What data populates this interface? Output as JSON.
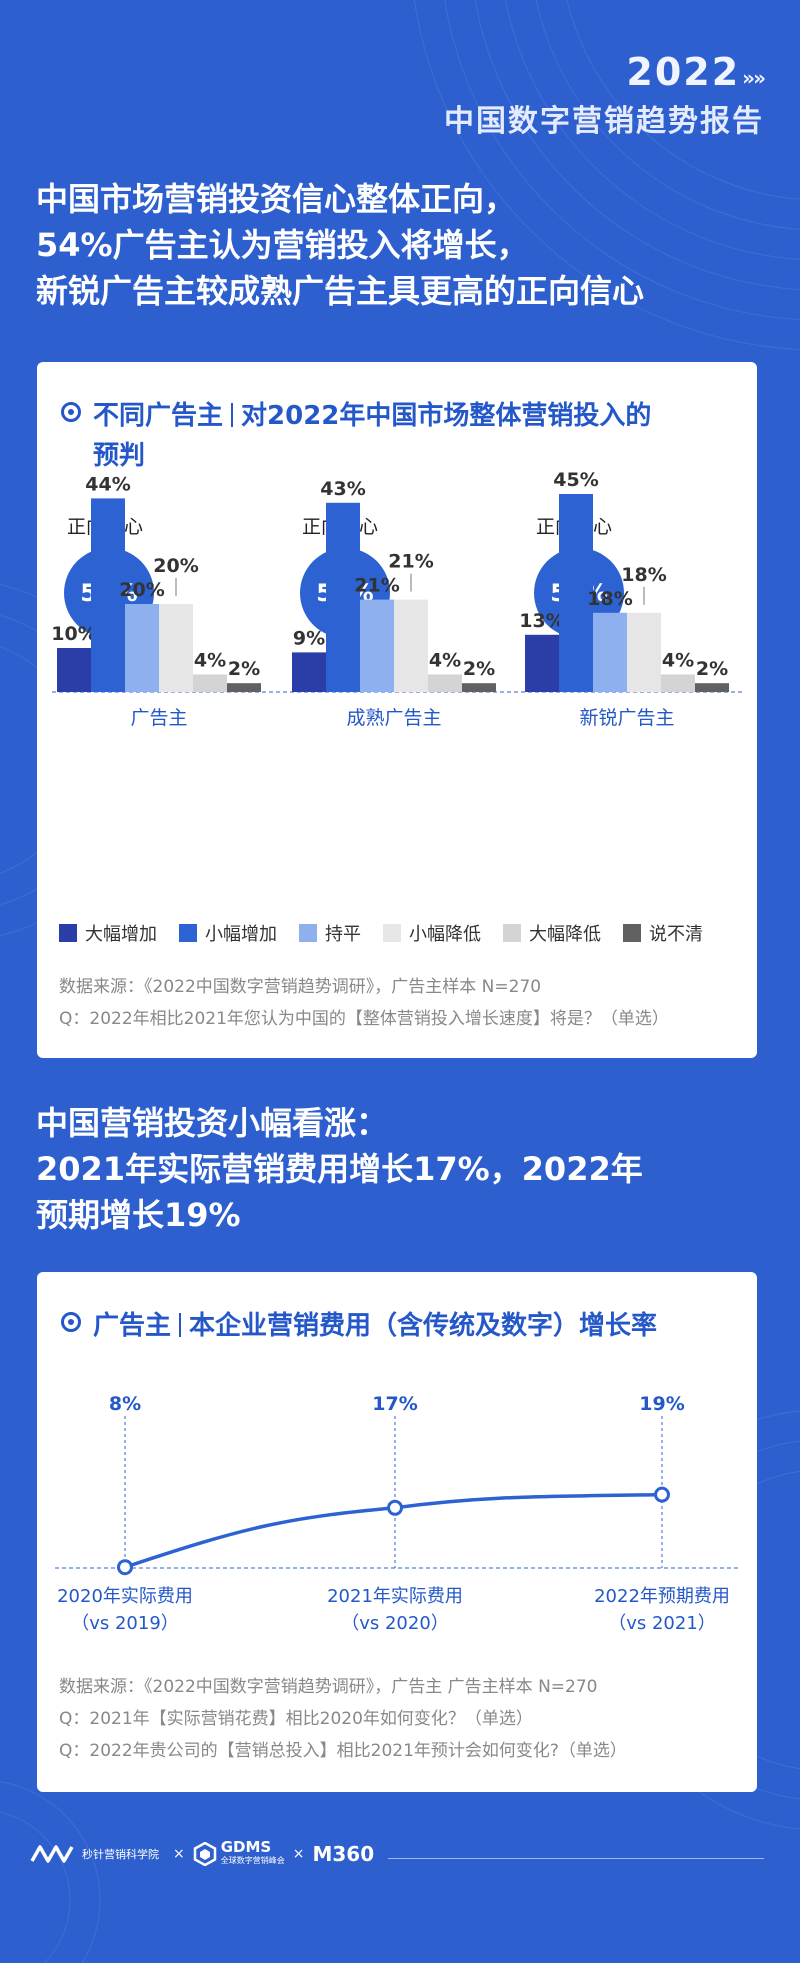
{
  "brand": {
    "year": "2022",
    "arrows": "»»",
    "subtitle": "中国数字营销趋势报告"
  },
  "headline1": [
    "中国市场营销投资信心整体正向，",
    "54%广告主认为营销投入将增长，",
    "新锐广告主较成熟广告主具更高的正向信心"
  ],
  "card1": {
    "title_part1": "不同广告主",
    "title_part2": "对2022年中国市场整体营销投入的",
    "title_part3": "预判",
    "confidence_label": "正向信心",
    "confidence": [
      "54%",
      "52%",
      "58%"
    ],
    "legend": [
      "大幅增加",
      "小幅增加",
      "持平",
      "小幅降低",
      "大幅降低",
      "说不清"
    ],
    "source": "数据来源：《2022中国数字营销趋势调研》，广告主样本 N=270",
    "question": "Q：2022年相比2021年您认为中国的【整体营销投入增长速度】将是？（单选）"
  },
  "headline2": [
    "中国营销投资小幅看涨：",
    "2021年实际营销费用增长17%，2022年",
    "预期增长19%"
  ],
  "card2": {
    "title_part1": "广告主",
    "title_part2": "本企业营销费用（含传统及数字）增长率",
    "source": "数据来源：《2022中国数字营销趋势调研》，广告主 广告主样本 N=270",
    "question1": "Q：2021年【实际营销花费】相比2020年如何变化？（单选）",
    "question2": "Q：2022年贵公司的【营销总投入】相比2021年预计会如何变化?（单选）"
  },
  "footer": {
    "logo1": "秒针营销科学院",
    "x": "×",
    "gdms": "GDMS",
    "gdms_sub": "全球数字营销峰会",
    "m360": "M360"
  },
  "colors": {
    "background": "#2e5fcf",
    "accent": "#2458c9",
    "series": [
      "#2b3ea8",
      "#2d62d3",
      "#8fb0ee",
      "#e6e6e6",
      "#d4d4d4",
      "#616161"
    ]
  },
  "chart_data": [
    {
      "type": "bar",
      "categories": [
        "广告主",
        "成熟广告主",
        "新锐广告主"
      ],
      "series": [
        {
          "name": "大幅增加",
          "values": [
            10,
            9,
            13
          ]
        },
        {
          "name": "小幅增加",
          "values": [
            44,
            43,
            45
          ]
        },
        {
          "name": "持平",
          "values": [
            20,
            21,
            18
          ]
        },
        {
          "name": "小幅降低",
          "values": [
            20,
            21,
            18
          ]
        },
        {
          "name": "大幅降低",
          "values": [
            4,
            4,
            4
          ]
        },
        {
          "name": "说不清",
          "values": [
            2,
            2,
            2
          ]
        }
      ],
      "unit": "%",
      "legend": "bottom"
    },
    {
      "type": "line",
      "x": [
        "2020年实际费用\n（vs 2019）",
        "2021年实际费用\n（vs 2020）",
        "2022年预期费用\n（vs 2021）"
      ],
      "series": [
        {
          "values": [
            8,
            17,
            19
          ]
        }
      ],
      "unit": "%"
    }
  ]
}
